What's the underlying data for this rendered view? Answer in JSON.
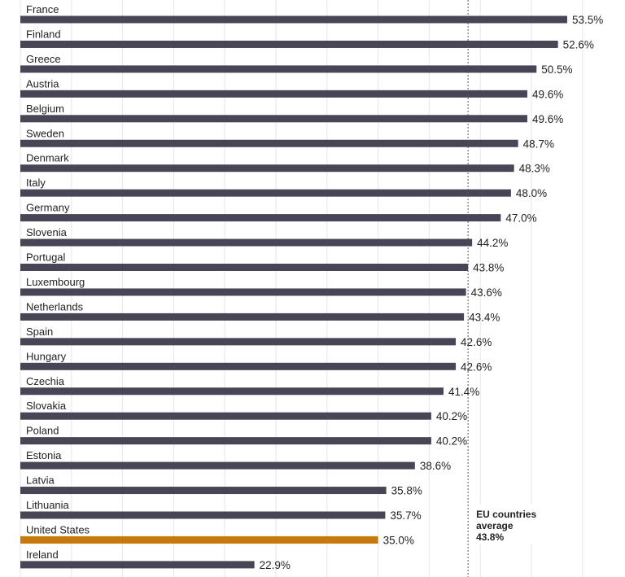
{
  "chart_data": {
    "type": "bar",
    "orientation": "horizontal",
    "categories": [
      "France",
      "Finland",
      "Greece",
      "Austria",
      "Belgium",
      "Sweden",
      "Denmark",
      "Italy",
      "Germany",
      "Slovenia",
      "Portugal",
      "Luxembourg",
      "Netherlands",
      "Spain",
      "Hungary",
      "Czechia",
      "Slovakia",
      "Poland",
      "Estonia",
      "Latvia",
      "Lithuania",
      "United States",
      "Ireland"
    ],
    "values": [
      53.5,
      52.6,
      50.5,
      49.6,
      49.6,
      48.7,
      48.3,
      48.0,
      47.0,
      44.2,
      43.8,
      43.6,
      43.4,
      42.6,
      42.6,
      41.4,
      40.2,
      40.2,
      38.6,
      35.8,
      35.7,
      35.0,
      22.9
    ],
    "value_labels": [
      "53.5%",
      "52.6%",
      "50.5%",
      "49.6%",
      "49.6%",
      "48.7%",
      "48.3%",
      "48.0%",
      "47.0%",
      "44.2%",
      "43.8%",
      "43.6%",
      "43.4%",
      "42.6%",
      "42.6%",
      "41.4%",
      "40.2%",
      "40.2%",
      "38.6%",
      "35.8%",
      "35.7%",
      "35.0%",
      "22.9%"
    ],
    "highlight": "United States",
    "xlim": [
      0,
      60
    ],
    "grid_step": 5,
    "grid": true,
    "reference_line": {
      "value": 43.8,
      "label_lines": [
        "EU countries",
        "average",
        "43.8%"
      ]
    },
    "colors": {
      "bar": "#474556",
      "highlight": "#c77a0b",
      "grid": "#e6e6e6",
      "refline": "#555555"
    }
  }
}
